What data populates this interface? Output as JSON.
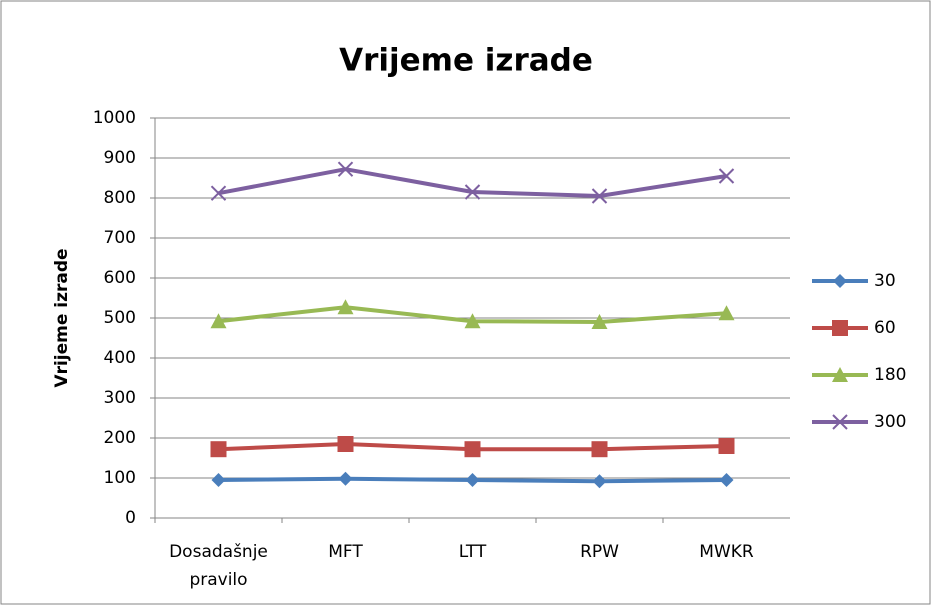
{
  "chart_data": {
    "type": "line",
    "title": "Vrijeme izrade",
    "y_label": "Vrijeme izrade",
    "categories": [
      "Dosadašnje pravilo",
      "MFT",
      "LTT",
      "RPW",
      "MWKR"
    ],
    "series": [
      {
        "name": "30",
        "color": "#4a7ebb",
        "marker": "diamond",
        "values": [
          95,
          98,
          95,
          92,
          95
        ]
      },
      {
        "name": "60",
        "color": "#be4b48",
        "marker": "square",
        "values": [
          172,
          185,
          172,
          172,
          180
        ]
      },
      {
        "name": "180",
        "color": "#98b954",
        "marker": "triangle",
        "values": [
          492,
          527,
          492,
          490,
          512
        ]
      },
      {
        "name": "300",
        "color": "#7d60a0",
        "marker": "x",
        "values": [
          812,
          872,
          815,
          805,
          855
        ]
      }
    ],
    "ylim": [
      0,
      1000
    ],
    "yticks": [
      0,
      100,
      200,
      300,
      400,
      500,
      600,
      700,
      800,
      900,
      1000
    ],
    "grid": true,
    "legend": "right"
  }
}
